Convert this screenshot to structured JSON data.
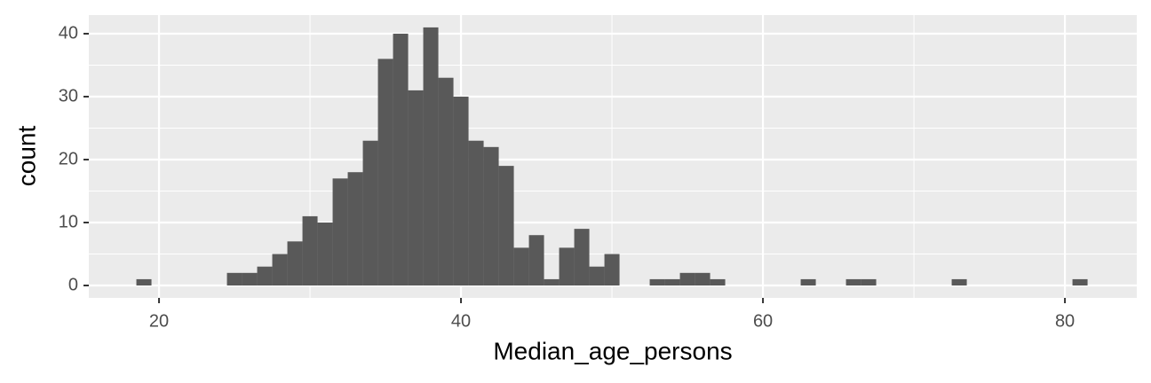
{
  "chart_data": {
    "type": "histogram",
    "x_label": "Median_age_persons",
    "y_label": "count",
    "bins": [
      18.5,
      19.5,
      20.5,
      21.5,
      22.5,
      23.5,
      24.5,
      25.5,
      26.5,
      27.5,
      28.5,
      29.5,
      30.5,
      31.5,
      32.5,
      33.5,
      34.5,
      35.5,
      36.5,
      37.5,
      38.5,
      39.5,
      40.5,
      41.5,
      42.5,
      43.5,
      44.5,
      45.5,
      46.5,
      47.5,
      48.5,
      49.5,
      50.5,
      51.5,
      52.5,
      53.5,
      54.5,
      55.5,
      56.5,
      57.5,
      58.5,
      59.5,
      60.5,
      61.5,
      62.5,
      63.5,
      64.5,
      65.5,
      66.5,
      67.5,
      68.5,
      69.5,
      70.5,
      71.5,
      72.5,
      73.5,
      74.5,
      75.5,
      76.5,
      77.5,
      78.5,
      79.5,
      80.5,
      81.5
    ],
    "counts": [
      1,
      0,
      0,
      0,
      0,
      0,
      2,
      2,
      3,
      5,
      7,
      11,
      10,
      17,
      18,
      23,
      36,
      40,
      31,
      41,
      33,
      30,
      23,
      22,
      19,
      6,
      8,
      1,
      6,
      9,
      3,
      5,
      0,
      0,
      1,
      1,
      2,
      2,
      1,
      0,
      0,
      0,
      0,
      0,
      1,
      0,
      0,
      1,
      1,
      0,
      0,
      0,
      0,
      0,
      1,
      0,
      0,
      0,
      0,
      0,
      0,
      0,
      1
    ],
    "color": "#595959",
    "xlim": [
      15.35,
      84.76
    ],
    "ylim": [
      -1.97,
      42.96
    ],
    "xticks": [
      20,
      40,
      60,
      80
    ],
    "yticks": [
      0,
      10,
      20,
      30,
      40
    ],
    "grid": true
  }
}
